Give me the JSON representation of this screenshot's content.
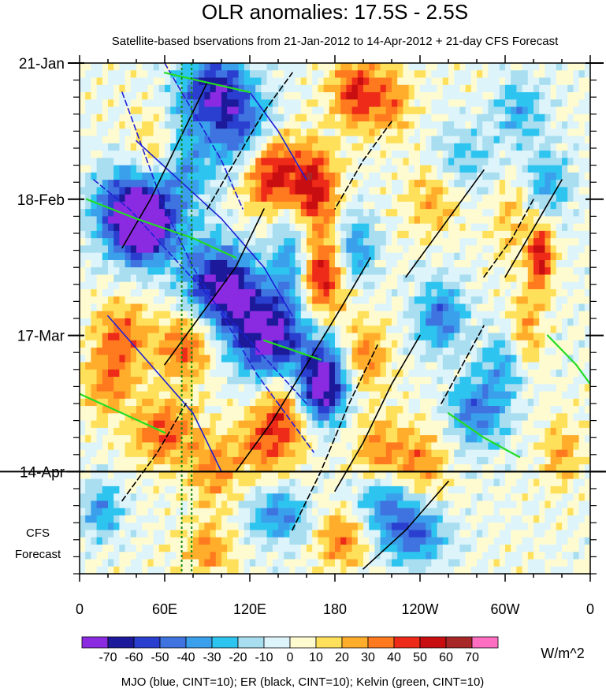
{
  "chart_data": {
    "type": "heatmap",
    "title": "OLR anomalies: 17.5S - 2.5S",
    "subtitle": "Satellite-based bservations from 21-Jan-2012 to 14-Apr-2012 + 21-day CFS Forecast",
    "forecast_label": [
      "CFS",
      "Forecast"
    ],
    "x_ticks": [
      {
        "lon": 0,
        "label": "0"
      },
      {
        "lon": 60,
        "label": "60E"
      },
      {
        "lon": 120,
        "label": "120E"
      },
      {
        "lon": 180,
        "label": "180"
      },
      {
        "lon": 240,
        "label": "120W"
      },
      {
        "lon": 300,
        "label": "60W"
      },
      {
        "lon": 360,
        "label": "0"
      }
    ],
    "xlim": [
      0,
      360
    ],
    "y_ticks": [
      {
        "day": 0,
        "label": "21-Jan"
      },
      {
        "day": 28,
        "label": "18-Feb"
      },
      {
        "day": 56,
        "label": "17-Mar"
      },
      {
        "day": 84,
        "label": "14-Apr"
      }
    ],
    "ylim_days": [
      0,
      105
    ],
    "forecast_start_day": 84,
    "colorbar": {
      "levels": [
        -70,
        -60,
        -50,
        -40,
        -30,
        -20,
        -10,
        0,
        10,
        20,
        30,
        40,
        50,
        60,
        70
      ],
      "labels": [
        "-70",
        "-60",
        "-50",
        "-40",
        "-30",
        "-20",
        "-10",
        "0",
        "10",
        "20",
        "30",
        "40",
        "50",
        "60",
        "70"
      ],
      "colors": [
        "#8a2be2",
        "#1c1a9a",
        "#2a3fcf",
        "#3e73e0",
        "#3aa0ec",
        "#2ec4f0",
        "#a8def0",
        "#ddf4fb",
        "#fffbd0",
        "#ffe05a",
        "#ffad2a",
        "#ff7a1e",
        "#ee2a18",
        "#c80e10",
        "#a8282a",
        "#ff6ec0"
      ],
      "units": "W/m^2"
    },
    "colors": {
      "mjo": "#1f1fd6",
      "er": "#000000",
      "kelvin": "#22dd22",
      "green_dotted": "#118811"
    },
    "contours": {
      "mjo": [
        {
          "sign": "neg",
          "pts": [
            [
              30,
              6
            ],
            [
              45,
              18
            ],
            [
              60,
              30
            ],
            [
              80,
              42
            ],
            [
              105,
              54
            ],
            [
              125,
              64
            ],
            [
              150,
              74
            ],
            [
              165,
              80
            ]
          ]
        },
        {
          "sign": "neg",
          "pts": [
            [
              10,
              24
            ],
            [
              35,
              30
            ],
            [
              60,
              38
            ],
            [
              85,
              46
            ],
            [
              110,
              54
            ],
            [
              135,
              62
            ],
            [
              160,
              70
            ]
          ]
        },
        {
          "sign": "neg",
          "pts": [
            [
              60,
              0
            ],
            [
              80,
              10
            ],
            [
              100,
              20
            ],
            [
              115,
              30
            ]
          ]
        },
        {
          "sign": "pos",
          "pts": [
            [
              40,
              16
            ],
            [
              70,
              24
            ],
            [
              100,
              32
            ],
            [
              130,
              42
            ],
            [
              150,
              52
            ]
          ]
        },
        {
          "sign": "pos",
          "pts": [
            [
              20,
              52
            ],
            [
              50,
              62
            ],
            [
              80,
              72
            ],
            [
              100,
              84
            ]
          ]
        },
        {
          "sign": "pos",
          "pts": [
            [
              120,
              6
            ],
            [
              140,
              14
            ],
            [
              160,
              24
            ]
          ]
        }
      ],
      "er": [
        {
          "sign": "pos",
          "pts": [
            [
              30,
              38
            ],
            [
              50,
              28
            ],
            [
              70,
              16
            ],
            [
              90,
              4
            ]
          ]
        },
        {
          "sign": "pos",
          "pts": [
            [
              60,
              62
            ],
            [
              85,
              52
            ],
            [
              110,
              42
            ],
            [
              130,
              30
            ]
          ]
        },
        {
          "sign": "pos",
          "pts": [
            [
              110,
              84
            ],
            [
              135,
              74
            ],
            [
              160,
              62
            ],
            [
              185,
              50
            ],
            [
              205,
              40
            ]
          ]
        },
        {
          "sign": "pos",
          "pts": [
            [
              180,
              88
            ],
            [
              200,
              78
            ],
            [
              220,
              66
            ],
            [
              240,
              56
            ]
          ]
        },
        {
          "sign": "pos",
          "pts": [
            [
              200,
              104
            ],
            [
              230,
              96
            ],
            [
              260,
              86
            ]
          ]
        },
        {
          "sign": "pos",
          "pts": [
            [
              300,
              44
            ],
            [
              320,
              34
            ],
            [
              340,
              24
            ]
          ]
        },
        {
          "sign": "pos",
          "pts": [
            [
              230,
              44
            ],
            [
              250,
              36
            ],
            [
              270,
              28
            ],
            [
              285,
              22
            ]
          ]
        },
        {
          "sign": "neg",
          "pts": [
            [
              90,
              30
            ],
            [
              110,
              20
            ],
            [
              130,
              10
            ],
            [
              150,
              2
            ]
          ]
        },
        {
          "sign": "neg",
          "pts": [
            [
              30,
              90
            ],
            [
              55,
              80
            ],
            [
              75,
              70
            ]
          ]
        },
        {
          "sign": "neg",
          "pts": [
            [
              150,
              96
            ],
            [
              170,
              84
            ],
            [
              190,
              70
            ],
            [
              210,
              58
            ]
          ]
        },
        {
          "sign": "neg",
          "pts": [
            [
              220,
              12
            ],
            [
              200,
              20
            ],
            [
              180,
              30
            ]
          ]
        },
        {
          "sign": "neg",
          "pts": [
            [
              285,
              44
            ],
            [
              305,
              36
            ],
            [
              320,
              28
            ]
          ]
        },
        {
          "sign": "neg",
          "pts": [
            [
              255,
              70
            ],
            [
              270,
              62
            ],
            [
              285,
              54
            ]
          ]
        }
      ],
      "kelvin": [
        {
          "sign": "pos",
          "pts": [
            [
              5,
              28
            ],
            [
              40,
              32
            ],
            [
              80,
              36
            ],
            [
              110,
              40
            ]
          ]
        },
        {
          "sign": "pos",
          "pts": [
            [
              130,
              57
            ],
            [
              150,
              59
            ],
            [
              170,
              61
            ]
          ]
        },
        {
          "sign": "pos",
          "pts": [
            [
              0,
              68
            ],
            [
              30,
              72
            ],
            [
              60,
              76
            ]
          ]
        },
        {
          "sign": "pos",
          "pts": [
            [
              260,
              72
            ],
            [
              285,
              77
            ],
            [
              310,
              81
            ]
          ]
        },
        {
          "sign": "pos",
          "pts": [
            [
              60,
              2
            ],
            [
              90,
              4
            ],
            [
              120,
              6
            ]
          ]
        },
        {
          "sign": "pos",
          "pts": [
            [
              330,
              56
            ],
            [
              350,
              62
            ],
            [
              360,
              66
            ]
          ]
        }
      ],
      "green_dotted_lon": [
        72,
        79
      ]
    }
  },
  "footer": {
    "legend_text": "MJO (blue, CINT=10); ER (black, CINT=10); Kelvin (green, CINT=10)"
  }
}
